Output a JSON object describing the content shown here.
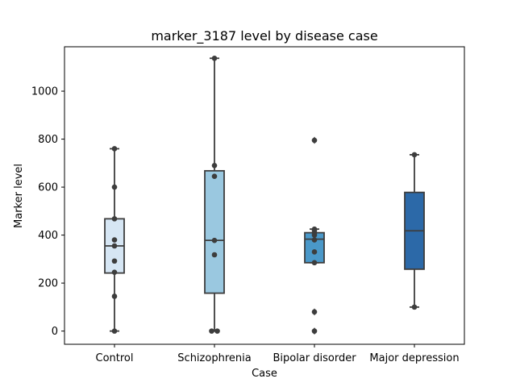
{
  "chart_data": {
    "type": "box",
    "title": "marker_3187 level by disease case",
    "xlabel": "Case",
    "ylabel": "Marker level",
    "ylim": [
      -55,
      1185
    ],
    "yticks": [
      0,
      200,
      400,
      600,
      800,
      1000
    ],
    "categories": [
      "Control",
      "Schizophrenia",
      "Bipolar disorder",
      "Major depression"
    ],
    "colors": [
      "#d6e6f4",
      "#9ac8e0",
      "#4a98c9",
      "#2c69a8"
    ],
    "grid": false,
    "legend": "none",
    "boxes": [
      {
        "category": "Control",
        "q1": 242,
        "median": 355,
        "q3": 468,
        "whisker_low": 0,
        "whisker_high": 760,
        "outliers": []
      },
      {
        "category": "Schizophrenia",
        "q1": 158,
        "median": 378,
        "q3": 668,
        "whisker_low": 0,
        "whisker_high": 1137,
        "outliers": []
      },
      {
        "category": "Bipolar disorder",
        "q1": 285,
        "median": 383,
        "q3": 410,
        "whisker_low": 285,
        "whisker_high": 425,
        "outliers": [
          0,
          80,
          795
        ]
      },
      {
        "category": "Major depression",
        "q1": 258,
        "median": 418,
        "q3": 578,
        "whisker_low": 100,
        "whisker_high": 735,
        "outliers": []
      }
    ],
    "points": [
      {
        "category": "Control",
        "values": [
          0,
          145,
          245,
          292,
          355,
          380,
          468,
          600,
          760
        ]
      },
      {
        "category": "Schizophrenia",
        "values": [
          0,
          0,
          318,
          378,
          645,
          690,
          1137
        ]
      },
      {
        "category": "Bipolar disorder",
        "values": [
          0,
          80,
          285,
          330,
          380,
          400,
          410,
          420,
          425,
          795
        ]
      },
      {
        "category": "Major depression",
        "values": [
          100,
          735
        ]
      }
    ]
  }
}
